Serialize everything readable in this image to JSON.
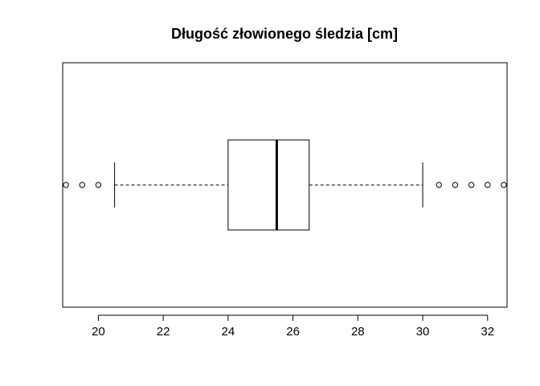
{
  "chart_data": {
    "type": "boxplot",
    "orientation": "horizontal",
    "title": "Długość złowionego śledzia [cm]",
    "xlabel": "",
    "ylabel": "",
    "xlim": [
      18.9,
      32.6
    ],
    "xticks": [
      20,
      22,
      24,
      26,
      28,
      30,
      32
    ],
    "box": {
      "whisker_low": 20.5,
      "q1": 24.0,
      "median": 25.5,
      "q3": 26.5,
      "whisker_high": 30.0
    },
    "outliers": [
      19.0,
      19.5,
      20.0,
      30.5,
      31.0,
      31.5,
      32.0,
      32.5
    ],
    "grid": false,
    "colors": {
      "stroke": "#000000",
      "background": "#ffffff"
    }
  }
}
